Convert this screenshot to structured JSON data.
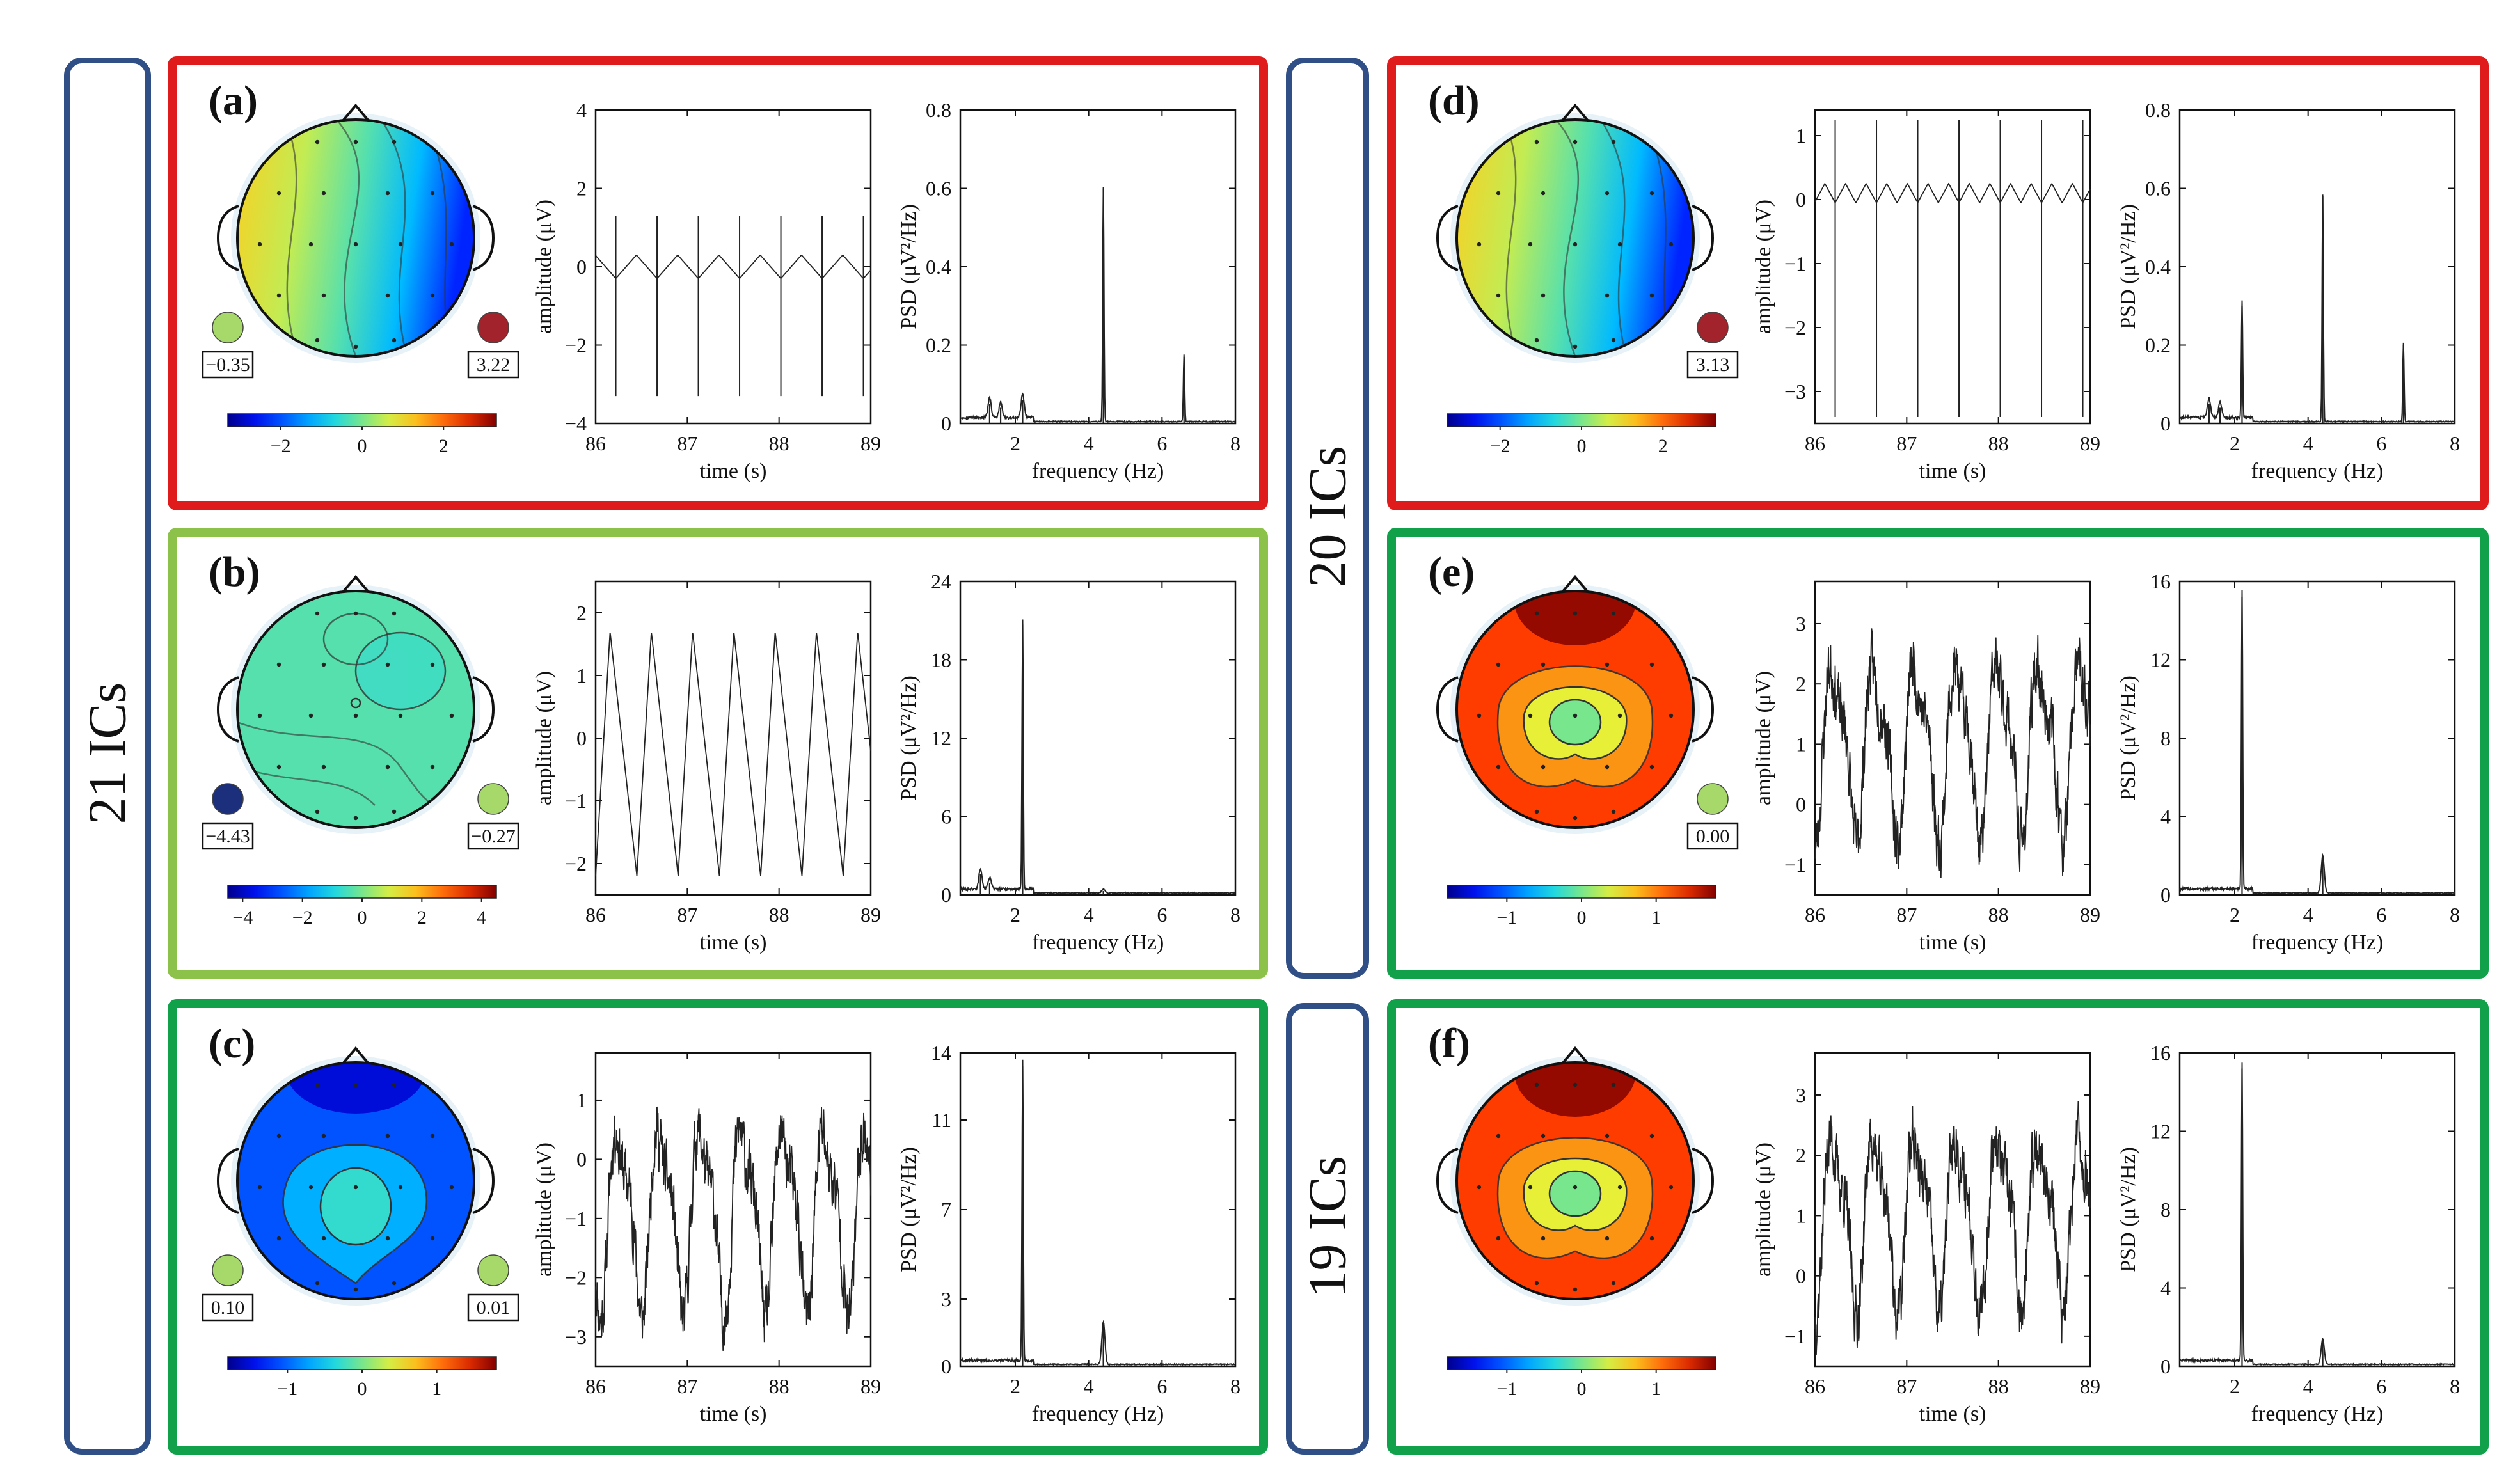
{
  "colors": {
    "red": "#e01b1b",
    "light_green": "#8cc24a",
    "green": "#12a14b",
    "blue_frame": "#2f4f86",
    "dot_red": "#a3232d",
    "dot_blue": "#1b2f7d",
    "dot_green": "#a6d86a"
  },
  "groups": [
    {
      "label": "21 ICs"
    },
    {
      "label": "20 ICs"
    },
    {
      "label": "19 ICs"
    }
  ],
  "chart_data": [
    {
      "panel": "(a)",
      "frame": "red",
      "type": "composite",
      "topomap": {
        "map_style": "lr_gradient",
        "left_marker": {
          "label": "−0.35",
          "color": "dot_green"
        },
        "right_marker": {
          "label": "3.22",
          "color": "dot_red"
        },
        "colorbar": {
          "ticks": [
            "−2",
            "0",
            "2"
          ],
          "tick_values": [
            -2,
            0,
            2
          ],
          "range": [
            -3.3,
            3.3
          ]
        }
      },
      "time_series": {
        "type": "line",
        "xlabel": "time (s)",
        "ylabel": "amplitude (μV)",
        "xlim": [
          86,
          89
        ],
        "ylim": [
          -4,
          4
        ],
        "xticks": [
          86,
          87,
          88,
          89
        ],
        "xtick_labels": [
          "86",
          "87",
          "88",
          "89"
        ],
        "yticks": [
          -4,
          -2,
          0,
          2,
          4
        ],
        "ytick_labels": [
          "−4",
          "−2",
          "0",
          "2",
          "4"
        ],
        "signal": {
          "kind": "spikes",
          "baseline": 0,
          "amplitude": 0.3,
          "period": 0.45,
          "phase": 86.22,
          "spike_hi": 1.3,
          "spike_lo": -3.3,
          "wave_period": 0.45
        }
      },
      "psd": {
        "type": "line",
        "xlabel": "frequency (Hz)",
        "ylabel": "PSD (μV²/Hz)",
        "xlim": [
          0.5,
          8
        ],
        "ylim": [
          0,
          0.8
        ],
        "xticks": [
          2,
          4,
          6,
          8
        ],
        "xtick_labels": [
          "2",
          "4",
          "6",
          "8"
        ],
        "yticks": [
          0,
          0.2,
          0.4,
          0.6,
          0.8
        ],
        "ytick_labels": [
          "0",
          "0.2",
          "0.4",
          "0.6",
          "0.8"
        ],
        "peaks": [
          {
            "f": 1.3,
            "v": 0.05
          },
          {
            "f": 1.6,
            "v": 0.04
          },
          {
            "f": 2.2,
            "v": 0.06
          },
          {
            "f": 4.4,
            "v": 0.6
          },
          {
            "f": 6.6,
            "v": 0.17
          }
        ]
      }
    },
    {
      "panel": "(b)",
      "frame": "light_green",
      "type": "composite",
      "topomap": {
        "map_style": "uniform_green",
        "left_marker": {
          "label": "−4.43",
          "color": "dot_blue"
        },
        "right_marker": {
          "label": "−0.27",
          "color": "dot_green"
        },
        "colorbar": {
          "ticks": [
            "−4",
            "−2",
            "0",
            "2",
            "4"
          ],
          "tick_values": [
            -4,
            -2,
            0,
            2,
            4
          ],
          "range": [
            -4.5,
            4.5
          ]
        }
      },
      "time_series": {
        "type": "line",
        "xlabel": "time (s)",
        "ylabel": "amplitude (μV)",
        "xlim": [
          86,
          89
        ],
        "ylim": [
          -2.5,
          2.5
        ],
        "xticks": [
          86,
          87,
          88,
          89
        ],
        "xtick_labels": [
          "86",
          "87",
          "88",
          "89"
        ],
        "yticks": [
          -2,
          -1,
          0,
          1,
          2
        ],
        "ytick_labels": [
          "−2",
          "−1",
          "0",
          "1",
          "2"
        ],
        "signal": {
          "kind": "sawtooth",
          "baseline": -0.25,
          "amplitude": 1.95,
          "period": 0.45,
          "phase": 86.0
        }
      },
      "psd": {
        "type": "line",
        "xlabel": "frequency (Hz)",
        "ylabel": "PSD (μV²/Hz)",
        "xlim": [
          0.5,
          8
        ],
        "ylim": [
          0,
          24
        ],
        "xticks": [
          2,
          4,
          6,
          8
        ],
        "xtick_labels": [
          "2",
          "4",
          "6",
          "8"
        ],
        "yticks": [
          0,
          6,
          12,
          18,
          24
        ],
        "ytick_labels": [
          "0",
          "6",
          "12",
          "18",
          "24"
        ],
        "peaks": [
          {
            "f": 1.05,
            "v": 1.6
          },
          {
            "f": 1.3,
            "v": 0.9
          },
          {
            "f": 2.2,
            "v": 20.7
          },
          {
            "f": 4.4,
            "v": 0.3
          }
        ]
      }
    },
    {
      "panel": "(c)",
      "frame": "green",
      "type": "composite",
      "topomap": {
        "map_style": "blue_center",
        "left_marker": {
          "label": "0.10",
          "color": "dot_green"
        },
        "right_marker": {
          "label": "0.01",
          "color": "dot_green"
        },
        "colorbar": {
          "ticks": [
            "−1",
            "0",
            "1"
          ],
          "tick_values": [
            -1,
            0,
            1
          ],
          "range": [
            -1.8,
            1.8
          ]
        }
      },
      "time_series": {
        "type": "line",
        "xlabel": "time (s)",
        "ylabel": "amplitude (μV)",
        "xlim": [
          86,
          89
        ],
        "ylim": [
          -3.5,
          1.8
        ],
        "xticks": [
          86,
          87,
          88,
          89
        ],
        "xtick_labels": [
          "86",
          "87",
          "88",
          "89"
        ],
        "yticks": [
          -3,
          -2,
          -1,
          0,
          1
        ],
        "ytick_labels": [
          "−3",
          "−2",
          "−1",
          "0",
          "1"
        ],
        "signal": {
          "kind": "noisy",
          "baseline": -0.9,
          "amplitude": 1.4,
          "period": 0.45,
          "phase": 86.15,
          "noise": 0.5,
          "seed": 11
        }
      },
      "psd": {
        "type": "line",
        "xlabel": "frequency (Hz)",
        "ylabel": "PSD (μV²/Hz)",
        "xlim": [
          0.5,
          8
        ],
        "ylim": [
          0,
          14
        ],
        "xticks": [
          2,
          4,
          6,
          8
        ],
        "xtick_labels": [
          "2",
          "4",
          "6",
          "8"
        ],
        "yticks": [
          0,
          3,
          7,
          11,
          14
        ],
        "ytick_labels": [
          "0",
          "3",
          "7",
          "11",
          "14"
        ],
        "peaks": [
          {
            "f": 2.2,
            "v": 13.4
          },
          {
            "f": 4.4,
            "v": 1.9
          }
        ]
      }
    },
    {
      "panel": "(d)",
      "frame": "red",
      "type": "composite",
      "topomap": {
        "map_style": "lr_gradient",
        "left_marker": null,
        "right_marker": {
          "label": "3.13",
          "color": "dot_red"
        },
        "colorbar": {
          "ticks": [
            "−2",
            "0",
            "2"
          ],
          "tick_values": [
            -2,
            0,
            2
          ],
          "range": [
            -3.3,
            3.3
          ]
        }
      },
      "time_series": {
        "type": "line",
        "xlabel": "time (s)",
        "ylabel": "amplitude (μV)",
        "xlim": [
          86,
          89
        ],
        "ylim": [
          -3.5,
          1.4
        ],
        "xticks": [
          86,
          87,
          88,
          89
        ],
        "xtick_labels": [
          "86",
          "87",
          "88",
          "89"
        ],
        "yticks": [
          -3,
          -2,
          -1,
          0,
          1
        ],
        "ytick_labels": [
          "−3",
          "−2",
          "−1",
          "0",
          "1"
        ],
        "signal": {
          "kind": "spikes",
          "baseline": 0.1,
          "amplitude": 0.15,
          "period": 0.45,
          "phase": 86.22,
          "spike_hi": 1.25,
          "spike_lo": -3.4,
          "wave_period": 0.225
        }
      },
      "psd": {
        "type": "line",
        "xlabel": "frequency (Hz)",
        "ylabel": "PSD (μV²/Hz)",
        "xlim": [
          0.5,
          8
        ],
        "ylim": [
          0,
          0.8
        ],
        "xticks": [
          2,
          4,
          6,
          8
        ],
        "xtick_labels": [
          "2",
          "4",
          "6",
          "8"
        ],
        "yticks": [
          0,
          0.2,
          0.4,
          0.6,
          0.8
        ],
        "ytick_labels": [
          "0",
          "0.2",
          "0.4",
          "0.6",
          "0.8"
        ],
        "peaks": [
          {
            "f": 1.3,
            "v": 0.05
          },
          {
            "f": 1.6,
            "v": 0.04
          },
          {
            "f": 2.2,
            "v": 0.3
          },
          {
            "f": 4.4,
            "v": 0.58
          },
          {
            "f": 6.6,
            "v": 0.2
          }
        ]
      }
    },
    {
      "panel": "(e)",
      "frame": "green",
      "type": "composite",
      "topomap": {
        "map_style": "red_center",
        "left_marker": null,
        "right_marker": {
          "label": "0.00",
          "color": "dot_green"
        },
        "colorbar": {
          "ticks": [
            "−1",
            "0",
            "1"
          ],
          "tick_values": [
            -1,
            0,
            1
          ],
          "range": [
            -1.8,
            1.8
          ]
        }
      },
      "time_series": {
        "type": "line",
        "xlabel": "time (s)",
        "ylabel": "amplitude (μV)",
        "xlim": [
          86,
          89
        ],
        "ylim": [
          -1.5,
          3.7
        ],
        "xticks": [
          86,
          87,
          88,
          89
        ],
        "xtick_labels": [
          "86",
          "87",
          "88",
          "89"
        ],
        "yticks": [
          -1,
          0,
          1,
          2,
          3
        ],
        "ytick_labels": [
          "−1",
          "0",
          "1",
          "2",
          "3"
        ],
        "signal": {
          "kind": "noisy",
          "baseline": 1.0,
          "amplitude": 1.3,
          "period": 0.45,
          "phase": 86.1,
          "noise": 0.5,
          "seed": 23
        }
      },
      "psd": {
        "type": "line",
        "xlabel": "frequency (Hz)",
        "ylabel": "PSD (μV²/Hz)",
        "xlim": [
          0.5,
          8
        ],
        "ylim": [
          0,
          16
        ],
        "xticks": [
          2,
          4,
          6,
          8
        ],
        "xtick_labels": [
          "2",
          "4",
          "6",
          "8"
        ],
        "yticks": [
          0,
          4,
          8,
          12,
          16
        ],
        "ytick_labels": [
          "0",
          "4",
          "8",
          "12",
          "16"
        ],
        "peaks": [
          {
            "f": 2.2,
            "v": 15.2
          },
          {
            "f": 4.4,
            "v": 1.9
          }
        ]
      }
    },
    {
      "panel": "(f)",
      "frame": "green",
      "type": "composite",
      "topomap": {
        "map_style": "red_center",
        "left_marker": null,
        "right_marker": null,
        "colorbar": {
          "ticks": [
            "−1",
            "0",
            "1"
          ],
          "tick_values": [
            -1,
            0,
            1
          ],
          "range": [
            -1.8,
            1.8
          ]
        }
      },
      "time_series": {
        "type": "line",
        "xlabel": "time (s)",
        "ylabel": "amplitude (μV)",
        "xlim": [
          86,
          89
        ],
        "ylim": [
          -1.5,
          3.7
        ],
        "xticks": [
          86,
          87,
          88,
          89
        ],
        "xtick_labels": [
          "86",
          "87",
          "88",
          "89"
        ],
        "yticks": [
          -1,
          0,
          1,
          2,
          3
        ],
        "ytick_labels": [
          "−1",
          "0",
          "1",
          "2",
          "3"
        ],
        "signal": {
          "kind": "noisy",
          "baseline": 1.0,
          "amplitude": 1.3,
          "period": 0.45,
          "phase": 86.1,
          "noise": 0.5,
          "seed": 37
        }
      },
      "psd": {
        "type": "line",
        "xlabel": "frequency (Hz)",
        "ylabel": "PSD (μV²/Hz)",
        "xlim": [
          0.5,
          8
        ],
        "ylim": [
          0,
          16
        ],
        "xticks": [
          2,
          4,
          6,
          8
        ],
        "xtick_labels": [
          "2",
          "4",
          "6",
          "8"
        ],
        "yticks": [
          0,
          4,
          8,
          12,
          16
        ],
        "ytick_labels": [
          "0",
          "4",
          "8",
          "12",
          "16"
        ],
        "peaks": [
          {
            "f": 2.2,
            "v": 15.2
          },
          {
            "f": 4.4,
            "v": 1.3
          }
        ]
      }
    }
  ]
}
